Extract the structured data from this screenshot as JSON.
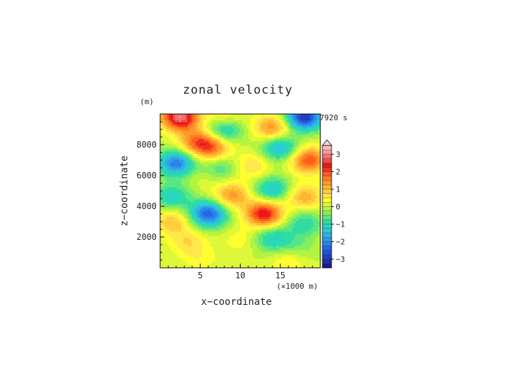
{
  "chart_data": {
    "type": "heatmap",
    "title": "zonal velocity",
    "xlabel": "x−coordinate",
    "ylabel": "z−coordinate",
    "x_units": "(×1000 m)",
    "y_units": "(m)",
    "time_label": "7920 s",
    "xlim": [
      0,
      20
    ],
    "ylim": [
      0,
      10000
    ],
    "x_ticks": [
      5,
      10,
      15
    ],
    "y_ticks": [
      2000,
      4000,
      6000,
      8000
    ],
    "colorbar": {
      "levels": [
        -3.5,
        -3.25,
        -3,
        -2.75,
        -2.5,
        -2.25,
        -2,
        -1.75,
        -1.5,
        -1.25,
        -1,
        -0.75,
        -0.5,
        -0.25,
        0,
        0.25,
        0.5,
        0.75,
        1,
        1.25,
        1.5,
        1.75,
        2,
        2.25,
        2.5,
        2.75,
        3,
        3.25,
        3.5
      ],
      "tick_values": [
        3,
        2,
        1,
        0,
        -1,
        -2,
        -3
      ],
      "tick_labels": [
        "3",
        "2",
        "1",
        "0",
        "−1",
        "−2",
        "−3"
      ],
      "extend": "max"
    },
    "features": [
      {
        "x": 2.5,
        "z": 9800,
        "value": 3.0
      },
      {
        "x": 8.0,
        "z": 9700,
        "value": 0.8
      },
      {
        "x": 18.0,
        "z": 9800,
        "value": -3.0
      },
      {
        "x": 8.0,
        "z": 9000,
        "value": -1.5
      },
      {
        "x": 14.0,
        "z": 9100,
        "value": 1.5
      },
      {
        "x": 4.5,
        "z": 8200,
        "value": 1.5
      },
      {
        "x": 6.5,
        "z": 7800,
        "value": 1.6
      },
      {
        "x": 15.0,
        "z": 7800,
        "value": -1.6
      },
      {
        "x": 2.0,
        "z": 6800,
        "value": -2.2
      },
      {
        "x": 18.5,
        "z": 7000,
        "value": 2.0
      },
      {
        "x": 7.5,
        "z": 6500,
        "value": -0.8
      },
      {
        "x": 11.5,
        "z": 6600,
        "value": 0.8
      },
      {
        "x": 5.5,
        "z": 5900,
        "value": 0.2
      },
      {
        "x": 9.0,
        "z": 4700,
        "value": 1.4
      },
      {
        "x": 14.0,
        "z": 5100,
        "value": -1.4
      },
      {
        "x": 1.5,
        "z": 4600,
        "value": -1.2
      },
      {
        "x": 18.0,
        "z": 4600,
        "value": 1.2
      },
      {
        "x": 6.0,
        "z": 3500,
        "value": -2.5
      },
      {
        "x": 13.0,
        "z": 3500,
        "value": 2.5
      },
      {
        "x": 1.5,
        "z": 3000,
        "value": 1.0
      },
      {
        "x": 18.0,
        "z": 2900,
        "value": -1.0
      },
      {
        "x": 10.0,
        "z": 1800,
        "value": 0.4
      },
      {
        "x": 14.0,
        "z": 1900,
        "value": -1.2
      },
      {
        "x": 3.5,
        "z": 1700,
        "value": 0.7
      },
      {
        "x": 17.0,
        "z": 1300,
        "value": -0.5
      },
      {
        "x": 5.0,
        "z": 600,
        "value": 0.4
      },
      {
        "x": 16.0,
        "z": 500,
        "value": 0.6
      }
    ]
  }
}
